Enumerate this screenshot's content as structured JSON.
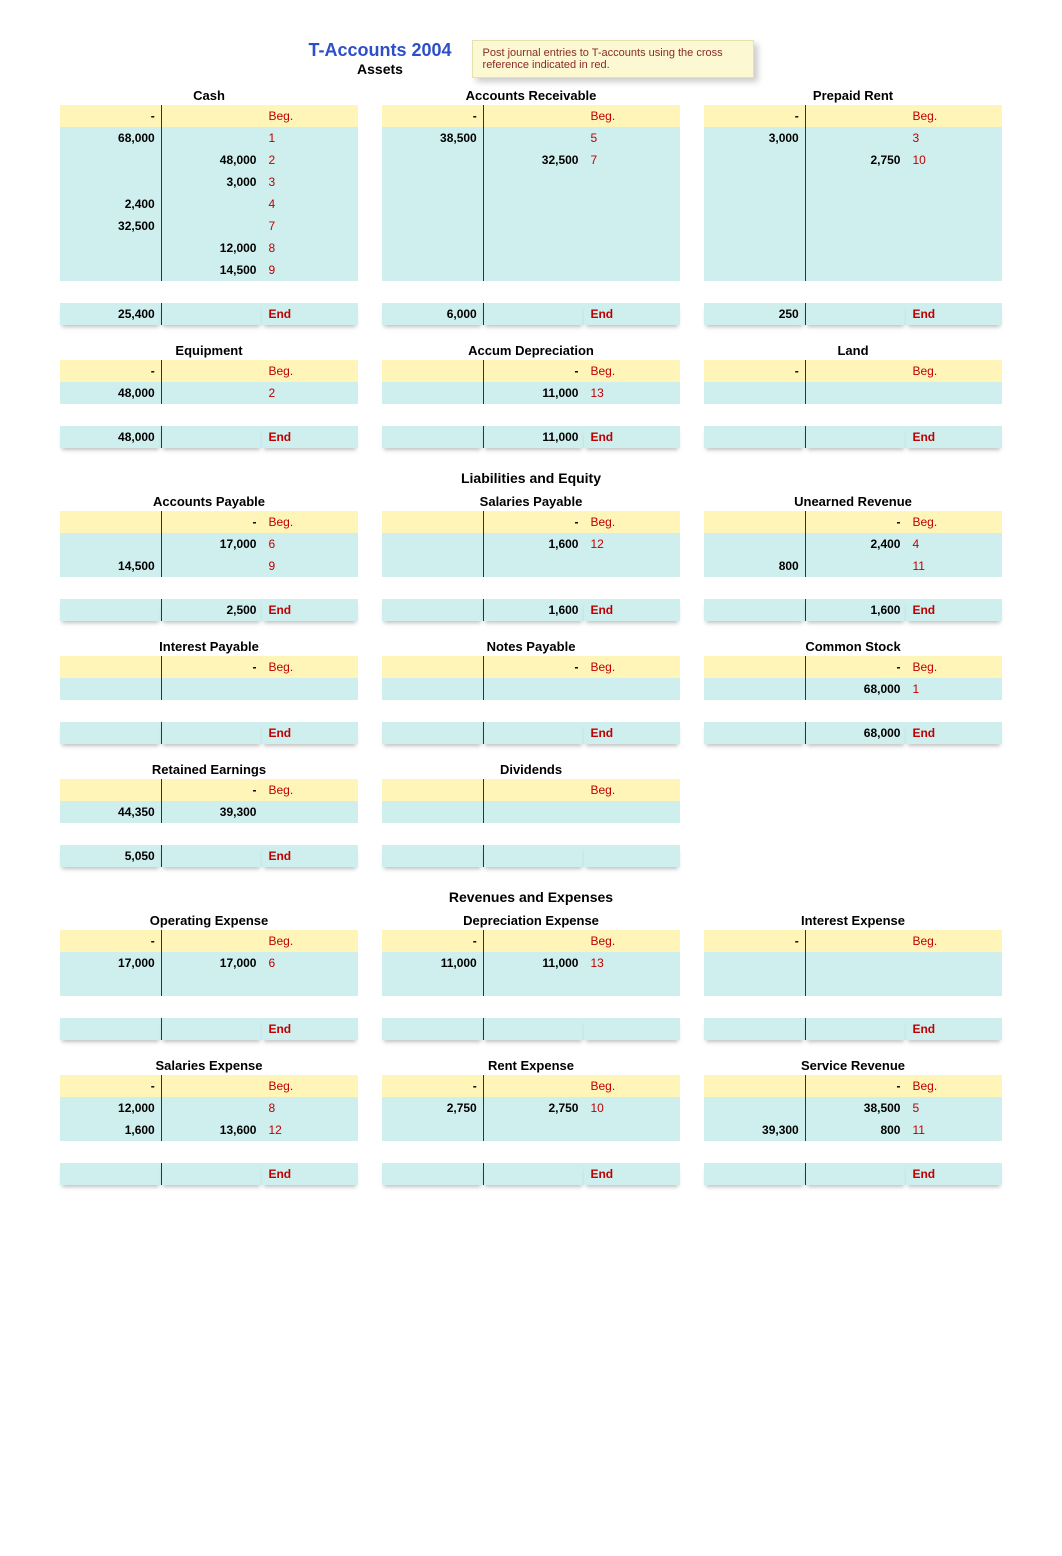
{
  "header": {
    "title": "T-Accounts 2004",
    "subtitle": "Assets",
    "note": "Post journal entries to T-accounts using the cross reference indicated in red."
  },
  "labels": {
    "beg": "Beg.",
    "end": "End"
  },
  "sections": [
    {
      "title": "Assets",
      "rows": [
        [
          {
            "name": "Cash",
            "beg_debit": "-",
            "beg_credit": "",
            "entries": [
              {
                "d": "68,000",
                "c": "",
                "r": "1"
              },
              {
                "d": "",
                "c": "48,000",
                "r": "2"
              },
              {
                "d": "",
                "c": "3,000",
                "r": "3"
              },
              {
                "d": "2,400",
                "c": "",
                "r": "4"
              },
              {
                "d": "32,500",
                "c": "",
                "r": "7"
              },
              {
                "d": "",
                "c": "12,000",
                "r": "8"
              },
              {
                "d": "",
                "c": "14,500",
                "r": "9"
              }
            ],
            "end_debit": "25,400",
            "end_credit": ""
          },
          {
            "name": "Accounts Receivable",
            "beg_debit": "-",
            "beg_credit": "",
            "entries": [
              {
                "d": "38,500",
                "c": "",
                "r": "5"
              },
              {
                "d": "",
                "c": "32,500",
                "r": "7"
              }
            ],
            "end_debit": "6,000",
            "end_credit": ""
          },
          {
            "name": "Prepaid Rent",
            "beg_debit": "-",
            "beg_credit": "",
            "entries": [
              {
                "d": "3,000",
                "c": "",
                "r": "3"
              },
              {
                "d": "",
                "c": "2,750",
                "r": "10"
              }
            ],
            "end_debit": "250",
            "end_credit": ""
          }
        ],
        [
          {
            "name": "Equipment",
            "beg_debit": "-",
            "beg_credit": "",
            "entries": [
              {
                "d": "48,000",
                "c": "",
                "r": "2"
              }
            ],
            "end_debit": "48,000",
            "end_credit": ""
          },
          {
            "name": "Accum Depreciation",
            "beg_debit": "",
            "beg_credit": "-",
            "entries": [
              {
                "d": "",
                "c": "11,000",
                "r": "13"
              }
            ],
            "end_debit": "",
            "end_credit": "11,000"
          },
          {
            "name": "Land",
            "beg_debit": "-",
            "beg_credit": "",
            "entries": [
              {
                "d": "",
                "c": "",
                "r": ""
              }
            ],
            "end_debit": "",
            "end_credit": ""
          }
        ]
      ]
    },
    {
      "title": "Liabilities and Equity",
      "rows": [
        [
          {
            "name": "Accounts Payable",
            "beg_debit": "",
            "beg_credit": "-",
            "entries": [
              {
                "d": "",
                "c": "17,000",
                "r": "6"
              },
              {
                "d": "14,500",
                "c": "",
                "r": "9"
              }
            ],
            "end_debit": "",
            "end_credit": "2,500"
          },
          {
            "name": "Salaries Payable",
            "beg_debit": "",
            "beg_credit": "-",
            "entries": [
              {
                "d": "",
                "c": "1,600",
                "r": "12"
              },
              {
                "d": "",
                "c": "",
                "r": ""
              }
            ],
            "end_debit": "",
            "end_credit": "1,600"
          },
          {
            "name": "Unearned Revenue",
            "beg_debit": "",
            "beg_credit": "-",
            "entries": [
              {
                "d": "",
                "c": "2,400",
                "r": "4"
              },
              {
                "d": "800",
                "c": "",
                "r": "11"
              }
            ],
            "end_debit": "",
            "end_credit": "1,600"
          }
        ],
        [
          {
            "name": "Interest Payable",
            "beg_debit": "",
            "beg_credit": "-",
            "entries": [
              {
                "d": "",
                "c": "",
                "r": ""
              }
            ],
            "end_debit": "",
            "end_credit": ""
          },
          {
            "name": "Notes Payable",
            "beg_debit": "",
            "beg_credit": "-",
            "entries": [
              {
                "d": "",
                "c": "",
                "r": ""
              }
            ],
            "end_debit": "",
            "end_credit": ""
          },
          {
            "name": "Common Stock",
            "beg_debit": "",
            "beg_credit": "-",
            "entries": [
              {
                "d": "",
                "c": "68,000",
                "r": "1"
              }
            ],
            "end_debit": "",
            "end_credit": "68,000"
          }
        ],
        [
          {
            "name": "Retained Earnings",
            "beg_debit": "",
            "beg_credit": "-",
            "entries": [
              {
                "d": "44,350",
                "c": "39,300",
                "r": ""
              }
            ],
            "end_debit": "5,050",
            "end_credit": ""
          },
          {
            "name": "Dividends",
            "beg_debit": "",
            "beg_credit": "",
            "entries": [
              {
                "d": "",
                "c": "",
                "r": ""
              }
            ],
            "end_debit": "",
            "end_credit": "",
            "no_end": true
          },
          {
            "name": "",
            "blank": true
          }
        ]
      ]
    },
    {
      "title": "Revenues and Expenses",
      "rows": [
        [
          {
            "name": "Operating Expense",
            "beg_debit": "-",
            "beg_credit": "",
            "entries": [
              {
                "d": "17,000",
                "c": "17,000",
                "r": "6"
              },
              {
                "d": "",
                "c": "",
                "r": ""
              }
            ],
            "end_debit": "",
            "end_credit": ""
          },
          {
            "name": "Depreciation Expense",
            "beg_debit": "-",
            "beg_credit": "",
            "entries": [
              {
                "d": "11,000",
                "c": "11,000",
                "r": "13"
              },
              {
                "d": "",
                "c": "",
                "r": ""
              }
            ],
            "end_debit": "",
            "end_credit": "",
            "no_end": true
          },
          {
            "name": "Interest Expense",
            "beg_debit": "-",
            "beg_credit": "",
            "entries": [
              {
                "d": "",
                "c": "",
                "r": ""
              },
              {
                "d": "",
                "c": "",
                "r": ""
              }
            ],
            "end_debit": "",
            "end_credit": ""
          }
        ],
        [
          {
            "name": "Salaries Expense",
            "beg_debit": "-",
            "beg_credit": "",
            "entries": [
              {
                "d": "12,000",
                "c": "",
                "r": "8"
              },
              {
                "d": "1,600",
                "c": "13,600",
                "r": "12"
              }
            ],
            "end_debit": "",
            "end_credit": ""
          },
          {
            "name": "Rent Expense",
            "beg_debit": "-",
            "beg_credit": "",
            "entries": [
              {
                "d": "2,750",
                "c": "2,750",
                "r": "10"
              },
              {
                "d": "",
                "c": "",
                "r": ""
              }
            ],
            "end_debit": "",
            "end_credit": ""
          },
          {
            "name": "Service Revenue",
            "beg_debit": "",
            "beg_credit": "-",
            "entries": [
              {
                "d": "",
                "c": "38,500",
                "r": "5"
              },
              {
                "d": "39,300",
                "c": "800",
                "r": "11"
              }
            ],
            "end_debit": "",
            "end_credit": ""
          }
        ]
      ]
    }
  ]
}
